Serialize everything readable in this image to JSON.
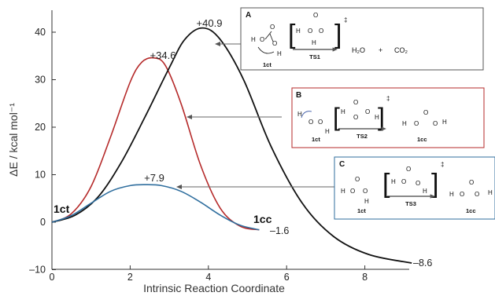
{
  "chart_data": {
    "type": "line",
    "xlabel": "Intrinsic Reaction Coordinate",
    "ylabel": "ΔE / kcal mol⁻¹",
    "xlim": [
      0,
      9.2
    ],
    "ylim": [
      -10,
      43
    ],
    "x_ticks": [
      0,
      2,
      4,
      6,
      8
    ],
    "y_ticks": [
      -10,
      0,
      10,
      20,
      30,
      40
    ],
    "grid": false,
    "series": [
      {
        "color": "#b52a2a",
        "x": [
          0,
          0.5,
          1.0,
          1.5,
          2.0,
          2.3,
          2.6,
          2.9,
          3.3,
          3.8,
          4.3,
          4.8,
          5.3
        ],
        "y": [
          0,
          1.8,
          7.5,
          18.0,
          29.5,
          33.7,
          34.6,
          33.0,
          25.0,
          12.0,
          3.0,
          -0.8,
          -1.6
        ]
      },
      {
        "color": "#111111",
        "x": [
          0,
          0.6,
          1.2,
          1.8,
          2.4,
          3.0,
          3.4,
          3.85,
          4.3,
          4.9,
          5.6,
          6.4,
          7.2,
          8.1,
          9.2
        ],
        "y": [
          0,
          1.5,
          5.5,
          13.0,
          22.5,
          32.5,
          38.5,
          40.9,
          38.5,
          30.0,
          16.0,
          4.0,
          -3.0,
          -6.8,
          -8.6
        ]
      },
      {
        "color": "#2f6e9e",
        "x": [
          0,
          0.5,
          1.0,
          1.5,
          2.0,
          2.4,
          2.8,
          3.3,
          3.8,
          4.3,
          4.8,
          5.3
        ],
        "y": [
          0,
          1.4,
          4.0,
          6.5,
          7.7,
          7.9,
          7.7,
          6.5,
          4.2,
          1.5,
          -0.6,
          -1.6
        ]
      }
    ],
    "annotations": {
      "peak_black": "+40.9",
      "peak_red": "+34.6",
      "peak_blue": "+7.9",
      "start_label": "1ct",
      "end_label": "1cc",
      "end_red_blue": "–1.6",
      "end_black": "–8.6"
    },
    "insets": [
      {
        "letter": "A",
        "ts": "TS1",
        "reactant": "1ct",
        "products": [
          "H₂O",
          "+",
          "CO₂"
        ],
        "frame_color": "#555555"
      },
      {
        "letter": "B",
        "ts": "TS2",
        "reactant": "1ct",
        "product": "1cc",
        "frame_color": "#b52a2a"
      },
      {
        "letter": "C",
        "ts": "TS3",
        "reactant": "1ct",
        "product": "1cc",
        "frame_color": "#2f6e9e"
      }
    ],
    "atoms": {
      "H": "H",
      "O": "O",
      "dagger": "‡"
    }
  }
}
